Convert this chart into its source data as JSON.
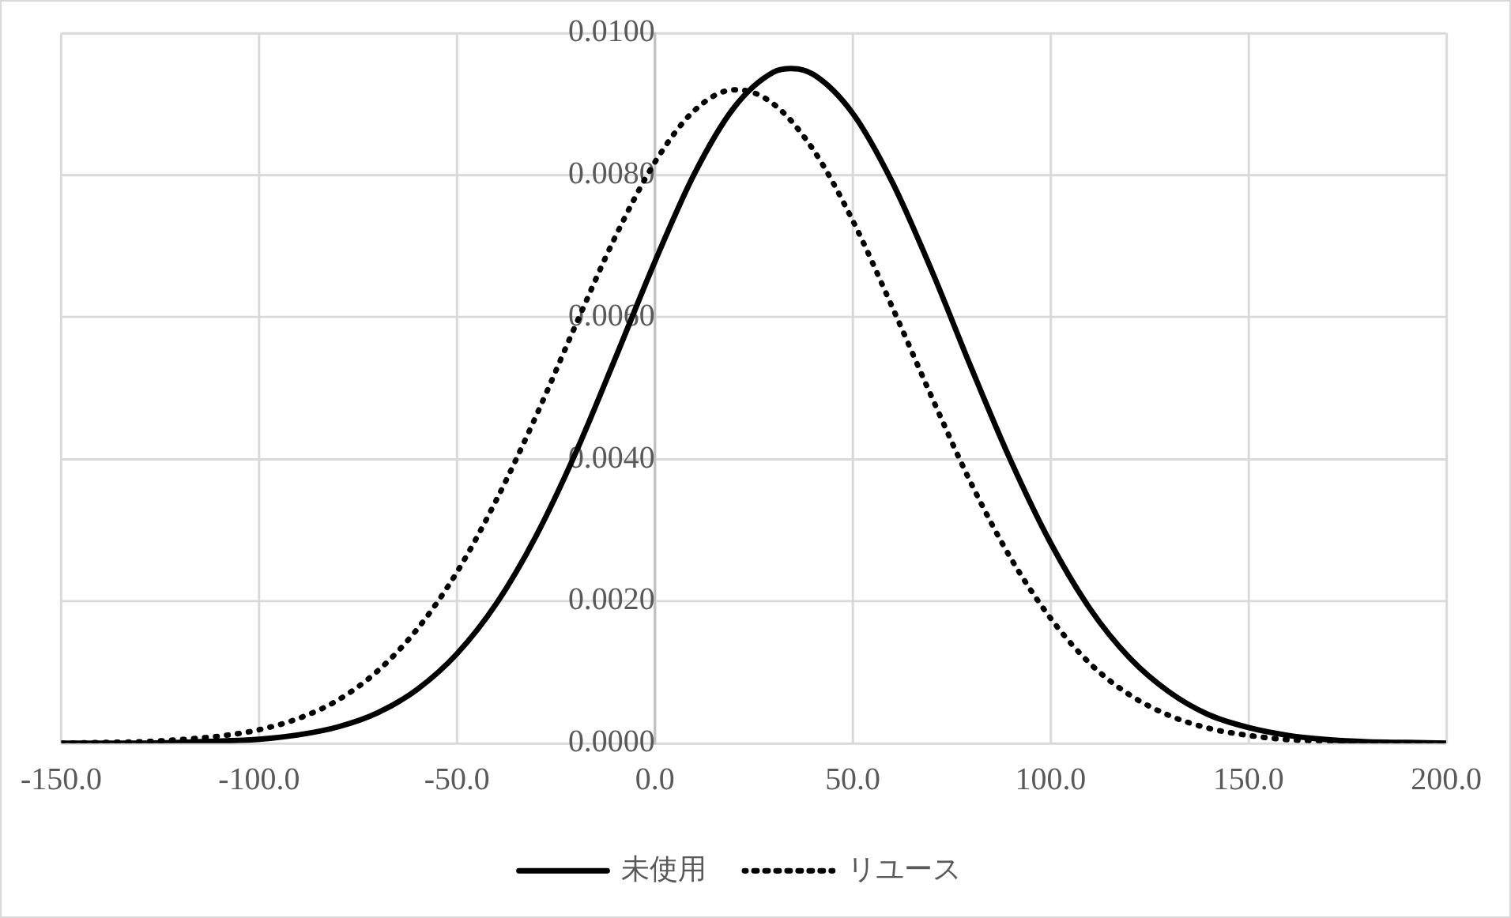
{
  "chart_data": {
    "type": "line",
    "xlim": [
      -150,
      200
    ],
    "xticks": [
      {
        "value": -150,
        "label": "-150.0"
      },
      {
        "value": -100,
        "label": "-100.0"
      },
      {
        "value": -50,
        "label": "-50.0"
      },
      {
        "value": 0,
        "label": "0.0"
      },
      {
        "value": 50,
        "label": "50.0"
      },
      {
        "value": 100,
        "label": "100.0"
      },
      {
        "value": 150,
        "label": "150.0"
      },
      {
        "value": 200,
        "label": "200.0"
      }
    ],
    "ylim": [
      0,
      0.01
    ],
    "yticks": [
      {
        "value": 0,
        "label": "0.0000"
      },
      {
        "value": 0.002,
        "label": "0.0020"
      },
      {
        "value": 0.004,
        "label": "0.0040"
      },
      {
        "value": 0.006,
        "label": "0.0060"
      },
      {
        "value": 0.008,
        "label": "0.0080"
      },
      {
        "value": 0.01,
        "label": "0.0100"
      }
    ],
    "grid": true,
    "legend": "bottom",
    "marker": "none",
    "series": [
      {
        "name": "未使用",
        "color": "#000000",
        "line_style": "solid",
        "x": [
          -150,
          -140,
          -130,
          -120,
          -110,
          -100,
          -90,
          -80,
          -70,
          -60,
          -50,
          -40,
          -30,
          -20,
          -10,
          0,
          10,
          20,
          30,
          34.5,
          40,
          50,
          60,
          70,
          80,
          90,
          100,
          110,
          120,
          130,
          140,
          150,
          160,
          170,
          180,
          190,
          200
        ],
        "values": [
          0,
          0,
          0,
          1e-05,
          3e-05,
          5.6e-05,
          0.000118,
          0.000231,
          0.00043,
          0.00076,
          0.00126,
          0.00197,
          0.00292,
          0.00409,
          0.00542,
          0.00678,
          0.00802,
          0.00895,
          0.00945,
          0.0095,
          0.00942,
          0.00887,
          0.0079,
          0.00665,
          0.00528,
          0.00397,
          0.00282,
          0.00189,
          0.0012,
          0.00072,
          0.0004,
          0.00022,
          0.00011,
          5e-05,
          2e-05,
          1e-05,
          0
        ]
      },
      {
        "name": "リユース",
        "color": "#000000",
        "line_style": "dotted",
        "x": [
          -150,
          -140,
          -130,
          -120,
          -110,
          -100,
          -90,
          -80,
          -70,
          -60,
          -50,
          -40,
          -30,
          -20,
          -10,
          0,
          10,
          20,
          21,
          30,
          40,
          50,
          60,
          70,
          80,
          90,
          100,
          110,
          120,
          130,
          140,
          150,
          160,
          170,
          180,
          190,
          200
        ],
        "values": [
          0,
          1e-05,
          2e-05,
          5e-05,
          0.0001,
          0.00019,
          0.00035,
          0.00061,
          0.00102,
          0.00161,
          0.00241,
          0.00343,
          0.00461,
          0.00589,
          0.00713,
          0.00818,
          0.00891,
          0.0092,
          0.0092,
          0.009,
          0.00836,
          0.00736,
          0.00614,
          0.00487,
          0.00365,
          0.0026,
          0.00176,
          0.00112,
          0.00068,
          0.00039,
          0.00021,
          0.00011,
          5e-05,
          3e-05,
          1e-05,
          0,
          0
        ]
      }
    ]
  }
}
